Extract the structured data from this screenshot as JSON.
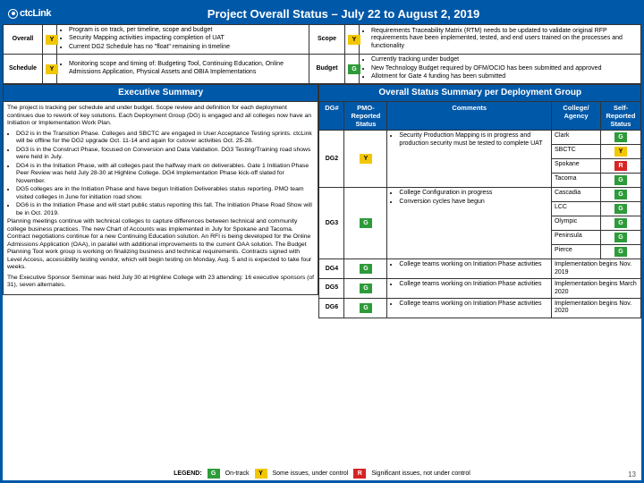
{
  "header": {
    "logo": "ctcLink",
    "title": "Project Overall Status – July 22 to August 2, 2019"
  },
  "top": {
    "rows": [
      {
        "label": "Overall",
        "status": "Y",
        "left": [
          "Program is on track, per timeline, scope and budget",
          "Security Mapping activities impacting completion of UAT",
          "Current DG2 Schedule has no \"float\" remaining in timeline"
        ],
        "label2": "Scope",
        "status2": "Y",
        "right": [
          "Requirements Traceability Matrix (RTM) needs to be updated to validate original RFP requirements have been implemented, tested, and end users trained on the processes and functionality"
        ]
      },
      {
        "label": "Schedule",
        "status": "Y",
        "left": [
          "Monitoring scope and timing of: Budgeting Tool, Continuing Education, Online Admissions Application, Physical Assets and OBIA Implementations"
        ],
        "label2": "Budget",
        "status2": "G",
        "right": [
          "Currently tracking under budget",
          "New Technology Budget required by OFM/OCIO has been submitted and approved",
          "Allotment for Gate 4 funding has been submitted"
        ]
      }
    ]
  },
  "exec": {
    "heading": "Executive Summary",
    "p1": "The project is tracking per schedule and under budget. Scope review and definition for each deployment continues due to rework of key solutions. Each Deployment Group (DG) is engaged and all colleges now have an Initiation or Implementation Work Plan.",
    "b1": "DG2 is in the Transition Phase. Colleges and SBCTC are engaged in User Acceptance Testing sprints. ctcLink will be offline for the DG2 upgrade Oct. 11-14 and again for cutover activities Oct. 25-28.",
    "b2": "DG3 is in the Construct Phase, focused on Conversion and Data Validation. DG3 Testing/Training road shows were held in July.",
    "b3": "DG4 is in the Initiation Phase, with all colleges past the halfway mark on deliverables. Gate 1 Initiation Phase Peer Review was held July 28-30 at Highline College. DG4 Implementation Phase kick-off slated for November.",
    "b4": "DG5 colleges are in the Initiation Phase and have begun Initiation Deliverables status reporting. PMO team visited colleges in June for initiation road show.",
    "b5": "DG6 is in the Initiation Phase and will start public status reporting this fall. The Initiation Phase Road Show will be in Oct. 2019.",
    "p2": "Planning meetings continue with technical colleges to capture differences between technical and community college business practices. The new Chart of Accounts was implemented in July for Spokane and Tacoma. Contract negotiations continue for a new Continuing Education solution. An RFI is being developed for the Online Admissions Application (OAA), in parallel with additional improvements to the current OAA solution. The Budget Planning Tool work group is working on finalizing business and technical requirements. Contracts signed with Level Access, accessibility testing vendor, which will begin testing on Monday, Aug. 5 and is expected to take four weeks.",
    "p3": "The Executive Sponsor Seminar was held July 30 at Highline College with 23 attending: 16 executive sponsors (of 31), seven alternates."
  },
  "ovr": {
    "heading": "Overall Status Summary per Deployment Group",
    "cols": [
      "DG#",
      "PMO-Reported Status",
      "Comments",
      "College/ Agency",
      "Self-Reported Status"
    ],
    "rows": [
      {
        "dg": "DG2",
        "pmo": "Y",
        "comments": [
          "Security Production Mapping is in progress and production security must be tested to complete UAT"
        ],
        "colleges": [
          [
            "Clark",
            "G"
          ],
          [
            "SBCTC",
            "Y"
          ],
          [
            "Spokane",
            "R"
          ],
          [
            "Tacoma",
            "G"
          ]
        ]
      },
      {
        "dg": "DG3",
        "pmo": "G",
        "comments": [
          "College Configuration in progress",
          "Conversion cycles have begun"
        ],
        "colleges": [
          [
            "Cascadia",
            "G"
          ],
          [
            "LCC",
            "G"
          ],
          [
            "Olympic",
            "G"
          ],
          [
            "Peninsula",
            "G"
          ],
          [
            "Pierce",
            "G"
          ]
        ]
      },
      {
        "dg": "DG4",
        "pmo": "G",
        "comments": [
          "College teams working on Initiation Phase activities"
        ],
        "note": "Implementation begins Nov. 2019"
      },
      {
        "dg": "DG5",
        "pmo": "G",
        "comments": [
          "College teams working on Initiation Phase activities"
        ],
        "note": "Implementation begins March 2020"
      },
      {
        "dg": "DG6",
        "pmo": "G",
        "comments": [
          "College teams working on Initiation Phase activities"
        ],
        "note": "Implementation begins Nov. 2020"
      }
    ]
  },
  "legend": {
    "label": "LEGEND:",
    "g": "On-track",
    "y": "Some issues, under control",
    "r": "Significant issues, not under control"
  },
  "pagenum": "13",
  "colors": {
    "blue": "#0058a8",
    "g": "#2e9b3a",
    "y": "#f2c700",
    "r": "#d62424"
  }
}
